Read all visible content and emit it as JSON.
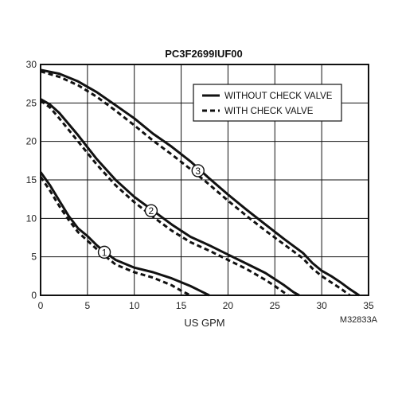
{
  "chart_data": {
    "type": "line",
    "title": "PC3F2699IUF00",
    "xlabel": "US GPM",
    "ylabel": "",
    "xlim": [
      0,
      35
    ],
    "ylim": [
      0,
      30
    ],
    "x_ticks": [
      0,
      5,
      10,
      15,
      20,
      25,
      30,
      35
    ],
    "y_ticks": [
      0,
      5,
      10,
      15,
      20,
      25,
      30
    ],
    "grid": true,
    "legend_position": "top-right",
    "legend": [
      {
        "label": "WITHOUT CHECK VALVE",
        "style": "solid"
      },
      {
        "label": "WITH CHECK VALVE",
        "style": "dashed"
      }
    ],
    "figure_code": "M32833A",
    "series": [
      {
        "curve": "1",
        "style": "solid",
        "label_at": [
          6.8,
          5.6
        ],
        "x": [
          0,
          1,
          2,
          3,
          4,
          5,
          6,
          7,
          8,
          10,
          12,
          14,
          16,
          17,
          18
        ],
        "y": [
          16,
          14.3,
          12.3,
          10.3,
          8.7,
          7.7,
          6.5,
          5.5,
          4.6,
          3.6,
          3,
          2.2,
          1.2,
          0.6,
          0
        ]
      },
      {
        "curve": "1",
        "style": "dashed",
        "x": [
          0,
          1,
          2,
          3,
          4,
          5,
          6,
          7,
          8,
          10,
          12,
          14,
          15,
          16
        ],
        "y": [
          15.4,
          13.6,
          11.6,
          9.8,
          8.2,
          7.1,
          6,
          5,
          4,
          3,
          2.3,
          1.3,
          0.6,
          0
        ]
      },
      {
        "curve": "2",
        "style": "solid",
        "label_at": [
          11.8,
          11
        ],
        "x": [
          0,
          1,
          2,
          4,
          6,
          8,
          10,
          12,
          14,
          16,
          18,
          20,
          22,
          24,
          26,
          27,
          27.6
        ],
        "y": [
          25.5,
          24.8,
          23.7,
          20.8,
          17.7,
          15,
          12.8,
          11,
          9.2,
          7.6,
          6.5,
          5.3,
          4.1,
          2.9,
          1.3,
          0.4,
          0
        ]
      },
      {
        "curve": "2",
        "style": "dashed",
        "x": [
          0,
          1,
          2,
          4,
          6,
          8,
          10,
          12,
          14,
          16,
          18,
          20,
          22,
          24,
          25,
          26.4
        ],
        "y": [
          25.3,
          24.4,
          23,
          20,
          17,
          14.3,
          12.1,
          10.2,
          8.4,
          6.9,
          5.8,
          4.6,
          3.4,
          2,
          1.2,
          0
        ]
      },
      {
        "curve": "3",
        "style": "solid",
        "label_at": [
          16.8,
          16.2
        ],
        "x": [
          0,
          2,
          4,
          6,
          8,
          10,
          12,
          14,
          16,
          18,
          20,
          22,
          24,
          26,
          28,
          29,
          30,
          31,
          32,
          33,
          34
        ],
        "y": [
          29.3,
          28.8,
          27.8,
          26.4,
          24.7,
          23,
          21,
          19.3,
          17.4,
          15.2,
          13.1,
          11.1,
          9.2,
          7.3,
          5.5,
          4.2,
          3.2,
          2.5,
          1.7,
          0.8,
          0
        ]
      },
      {
        "curve": "3",
        "style": "dashed",
        "x": [
          0,
          2,
          4,
          6,
          8,
          10,
          12,
          14,
          16,
          18,
          20,
          22,
          24,
          26,
          28,
          29,
          30,
          31,
          32,
          33
        ],
        "y": [
          29.1,
          28.4,
          27.3,
          25.8,
          24,
          22.1,
          20.1,
          18.3,
          16.4,
          14.4,
          12.3,
          10.3,
          8.4,
          6.6,
          4.8,
          3.5,
          2.5,
          1.7,
          0.9,
          0
        ]
      }
    ]
  }
}
